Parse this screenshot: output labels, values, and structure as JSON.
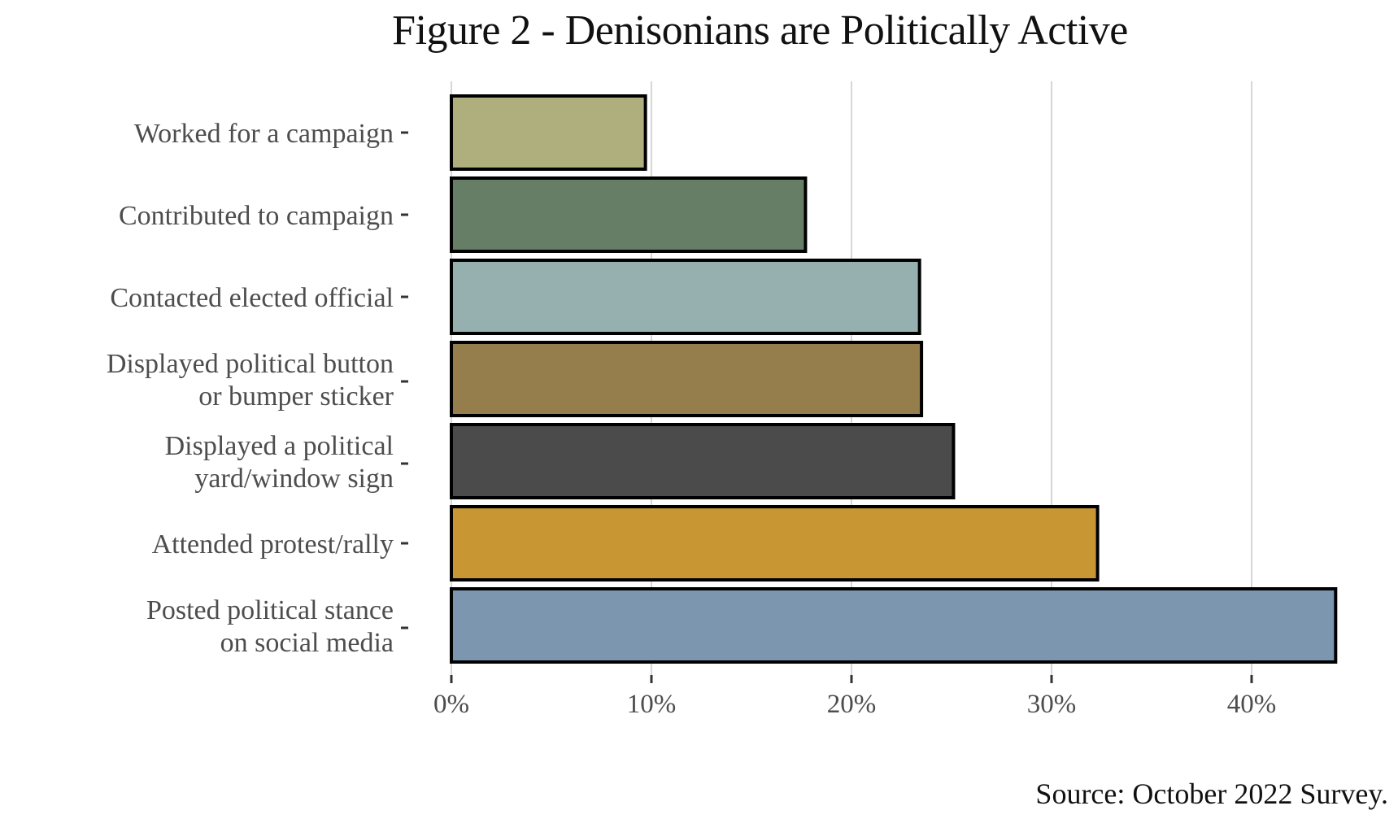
{
  "chart_data": {
    "type": "bar",
    "orientation": "horizontal",
    "title": "Figure 2 - Denisonians are Politically Active",
    "xlabel": "",
    "ylabel": "",
    "xlim": [
      0,
      45
    ],
    "grid": "vertical major",
    "categories": [
      [
        "Worked for a campaign"
      ],
      [
        "Contributed to campaign"
      ],
      [
        "Contacted elected official"
      ],
      [
        "Displayed political button",
        "or bumper sticker"
      ],
      [
        "Displayed a political",
        "yard/window sign"
      ],
      [
        "Attended protest/rally"
      ],
      [
        "Posted political stance",
        "on social media"
      ]
    ],
    "values": [
      9.7,
      17.7,
      23.4,
      23.5,
      25.1,
      32.3,
      44.2
    ],
    "colors": [
      "#afaf7e",
      "#657e65",
      "#96b0b0",
      "#957d4c",
      "#4b4b4b",
      "#c89633",
      "#7c96af"
    ],
    "x_ticks": [
      0,
      10,
      20,
      30,
      40
    ],
    "x_tick_labels": [
      "0%",
      "10%",
      "20%",
      "30%",
      "40%"
    ],
    "caption": "Source: October 2022 Survey."
  }
}
